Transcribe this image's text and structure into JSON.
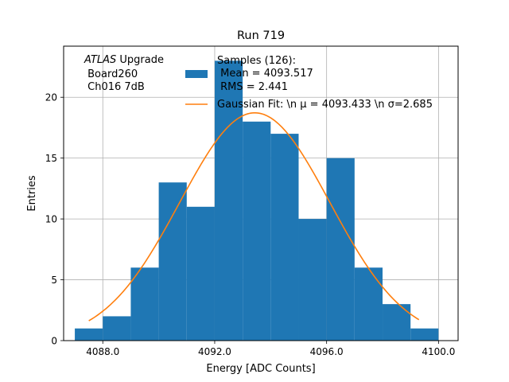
{
  "chart_data": {
    "type": "bar",
    "title": "Run 719",
    "xlabel": "Energy [ADC Counts]",
    "ylabel": "Entries",
    "xlim": [
      4086.6,
      4100.7
    ],
    "ylim": [
      0,
      24.2
    ],
    "grid": true,
    "legend_placement": "top-right",
    "x_ticks": [
      4088,
      4092,
      4096,
      4100
    ],
    "x_tick_labels": [
      "4088.0",
      "4092.0",
      "4096.0",
      "4100.0"
    ],
    "y_ticks": [
      0,
      5,
      10,
      15,
      20
    ],
    "y_tick_labels": [
      "0",
      "5",
      "10",
      "15",
      "20"
    ],
    "histogram": {
      "bin_edges": [
        4087,
        4088,
        4089,
        4090,
        4091,
        4092,
        4093,
        4094,
        4095,
        4096,
        4097,
        4098,
        4099,
        4100
      ],
      "counts": [
        1,
        2,
        6,
        13,
        11,
        23,
        18,
        17,
        10,
        15,
        6,
        3,
        1
      ],
      "color": "#1f77b4"
    },
    "fit_curve": {
      "mu": 4093.433,
      "sigma": 2.685,
      "x_range": [
        4087.5,
        4099.3
      ],
      "color": "#ff7f0e"
    },
    "legend": [
      {
        "kind": "patch",
        "lines": [
          "Samples (126):",
          " Mean = 4093.517",
          " RMS = 2.441"
        ],
        "color": "#1f77b4"
      },
      {
        "kind": "line",
        "lines": [
          "Gaussian Fit: \\n μ = 4093.433 \\n σ=2.685"
        ],
        "color": "#ff7f0e"
      }
    ],
    "annotation": {
      "atlas": "ATLAS",
      "upgrade": " Upgrade",
      "line2": " Board260",
      "line3": " Ch016 7dB"
    }
  }
}
